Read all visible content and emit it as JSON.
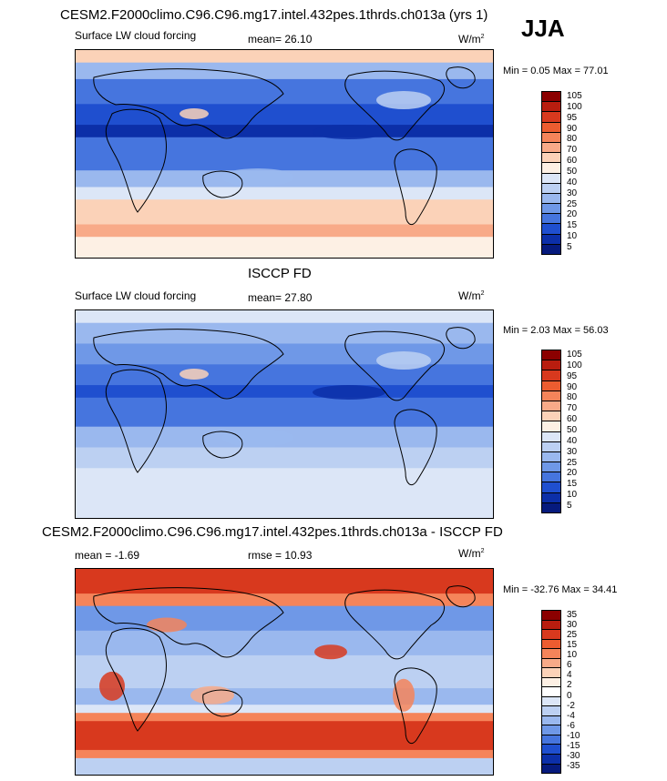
{
  "header": {
    "title": "CESM2.F2000climo.C96.C96.mg17.intel.432pes.1thrds.ch013a (yrs 1)",
    "season": "JJA"
  },
  "panels": [
    {
      "id": "model",
      "variable": "Surface LW cloud forcing",
      "stat1": "mean=  26.10",
      "units": "W/m",
      "units_sup": "2",
      "minmax": "Min =   0.05 Max =  77.01",
      "levels": [
        "105",
        "100",
        "95",
        "90",
        "80",
        "70",
        "60",
        "50",
        "40",
        "30",
        "25",
        "20",
        "15",
        "10",
        "5"
      ],
      "colors": [
        "#8b0000",
        "#b81d0f",
        "#d8391e",
        "#ec5c30",
        "#f5845a",
        "#f8aa88",
        "#fbd2b8",
        "#fdf0e4",
        "#dce6f7",
        "#bcd0f2",
        "#9ab8ee",
        "#6f98e7",
        "#4675de",
        "#1f4fcf",
        "#0c2fa8",
        "#061a7d"
      ]
    },
    {
      "id": "obs",
      "title": "ISCCP FD",
      "variable": "Surface LW cloud forcing",
      "stat1": "mean=  27.80",
      "units": "W/m",
      "units_sup": "2",
      "minmax": "Min =   2.03 Max =  56.03",
      "levels": [
        "105",
        "100",
        "95",
        "90",
        "80",
        "70",
        "60",
        "50",
        "40",
        "30",
        "25",
        "20",
        "15",
        "10",
        "5"
      ],
      "colors": [
        "#8b0000",
        "#b81d0f",
        "#d8391e",
        "#ec5c30",
        "#f5845a",
        "#f8aa88",
        "#fbd2b8",
        "#fdf0e4",
        "#dce6f7",
        "#bcd0f2",
        "#9ab8ee",
        "#6f98e7",
        "#4675de",
        "#1f4fcf",
        "#0c2fa8",
        "#061a7d"
      ]
    },
    {
      "id": "diff",
      "title": "CESM2.F2000climo.C96.C96.mg17.intel.432pes.1thrds.ch013a - ISCCP FD",
      "stat1": "mean =  -1.69",
      "stat2": "rmse =  10.93",
      "units": "W/m",
      "units_sup": "2",
      "minmax": "Min = -32.76 Max =  34.41",
      "levels": [
        "35",
        "30",
        "25",
        "15",
        "10",
        "6",
        "4",
        "2",
        "0",
        "-2",
        "-4",
        "-6",
        "-10",
        "-15",
        "-30",
        "-35"
      ],
      "colors": [
        "#8b0000",
        "#b81d0f",
        "#d8391e",
        "#ec5c30",
        "#f5845a",
        "#f8aa88",
        "#fbd2b8",
        "#fdf0e4",
        "#ffffff",
        "#dce6f7",
        "#bcd0f2",
        "#9ab8ee",
        "#6f98e7",
        "#4675de",
        "#1f4fcf",
        "#0c2fa8",
        "#061a7d"
      ]
    }
  ]
}
